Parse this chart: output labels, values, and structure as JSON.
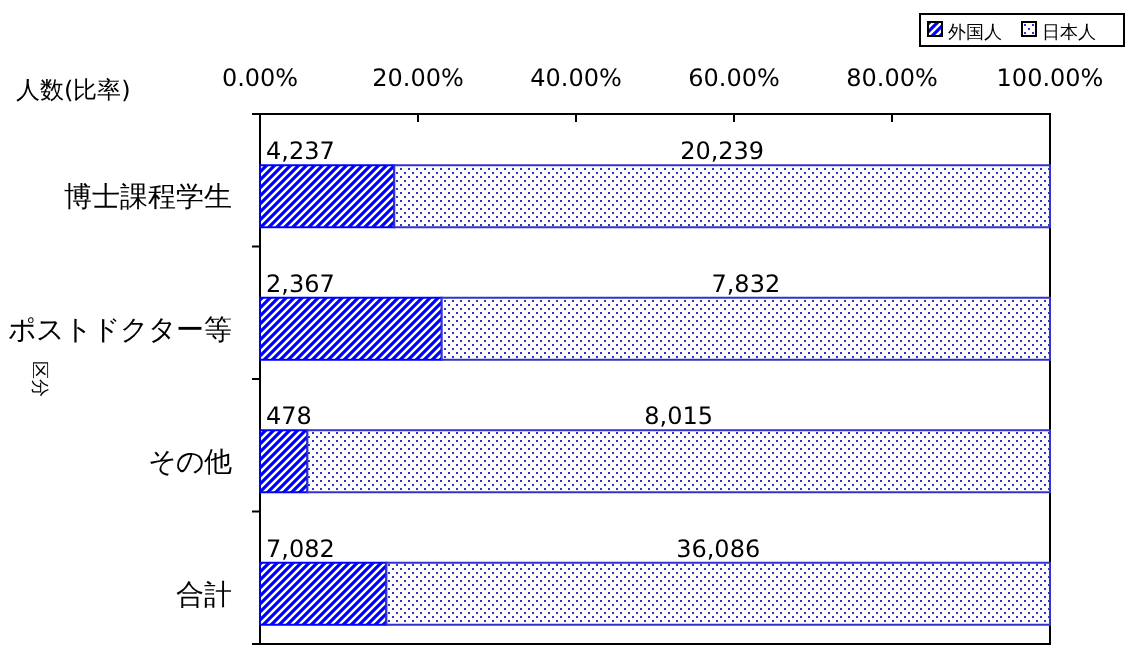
{
  "chart_data": {
    "type": "bar",
    "orientation": "horizontal",
    "stacked": true,
    "categories": [
      "博士課程学生",
      "ポストドクター等",
      "その他",
      "合計"
    ],
    "series": [
      {
        "name": "外国人",
        "color": "#0000ff",
        "values": [
          17,
          23,
          6,
          16
        ]
      },
      {
        "name": "日本人",
        "color": "#3333cc",
        "values": [
          83,
          77,
          94,
          84
        ]
      }
    ],
    "xlim": [
      0,
      100
    ],
    "xticks": [
      {
        "value": 0,
        "label": "0.00%"
      },
      {
        "value": 20,
        "label": "20.00%"
      },
      {
        "value": 40,
        "label": "40.00%"
      },
      {
        "value": 60,
        "label": "60.00%"
      },
      {
        "value": 80,
        "label": "80.00%"
      },
      {
        "value": 100,
        "label": "100.00%"
      }
    ],
    "ylabel": "区分",
    "annotations": [
      "人数(比率)",
      "4,237",
      "20,239",
      "2,367",
      "7,832",
      "478",
      "8,015",
      "7,082",
      "36,086"
    ],
    "legend": "top right",
    "grid": false
  }
}
